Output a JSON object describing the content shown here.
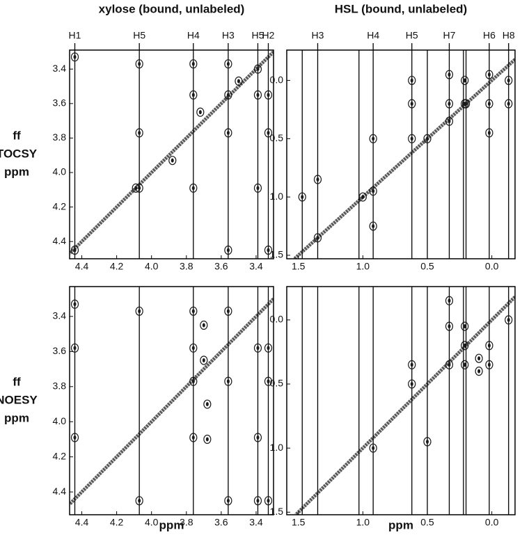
{
  "chart_data": [
    {
      "type": "scatter",
      "title": "xylose (bound, unlabeled)",
      "ylabel": [
        "ff",
        "TOCSY",
        "ppm"
      ],
      "color": "#1a1a1a",
      "diagonal": true,
      "xlim": [
        4.47,
        3.3
      ],
      "ylim": [
        3.29,
        4.5
      ],
      "xticks": [
        4.4,
        4.2,
        {
          "value": 4,
          "label": "4.0"
        },
        3.8,
        3.6,
        3.4
      ],
      "yticks": [
        3.4,
        3.6,
        3.8,
        {
          "value": 4,
          "label": "4.0"
        },
        4.2,
        4.4
      ],
      "markers": {
        "x": [
          4.44,
          4.07,
          3.76,
          3.56,
          3.39,
          3.33
        ],
        "labels": [
          "H1",
          "H5",
          "H4",
          "H3",
          "H5",
          "H2"
        ]
      },
      "x": [
        4.44,
        4.07,
        4.07,
        4.07,
        3.76,
        3.76,
        3.76,
        3.56,
        3.56,
        3.56,
        3.56,
        3.39,
        3.39,
        3.33,
        3.33,
        3.33,
        4.44,
        4.09,
        3.88,
        3.72,
        3.5,
        3.39
      ],
      "y": [
        3.33,
        3.37,
        3.77,
        4.09,
        3.37,
        3.55,
        4.09,
        3.37,
        3.55,
        3.77,
        4.45,
        3.55,
        4.09,
        3.55,
        3.77,
        4.45,
        4.45,
        4.09,
        3.93,
        3.65,
        3.47,
        3.4
      ]
    },
    {
      "type": "scatter",
      "title": "HSL (bound, unlabeled)",
      "color": "#1a1a1a",
      "diagonal": true,
      "xlim": [
        1.59,
        -0.18
      ],
      "ylim": [
        -0.26,
        1.53
      ],
      "xticks": [
        1.5,
        {
          "value": 1,
          "label": "1.0"
        },
        0.5,
        {
          "value": 0,
          "label": "0.0"
        }
      ],
      "yticks": [
        {
          "value": 0,
          "label": "0.0"
        },
        0.5,
        {
          "value": 1,
          "label": "1.0"
        },
        1.5
      ],
      "markers": {
        "x": [
          1.47,
          1.35,
          1.03,
          0.92,
          0.62,
          0.5,
          0.33,
          0.22,
          0.2,
          0.02,
          -0.13
        ],
        "labels": [
          null,
          "H3",
          null,
          "H4",
          "H5",
          null,
          "H7",
          null,
          null,
          "H6",
          "H8"
        ]
      },
      "x": [
        0.62,
        0.62,
        0.62,
        0.92,
        0.92,
        1.35,
        0.33,
        0.33,
        0.33,
        0.21,
        0.21,
        0.02,
        0.02,
        0.02,
        -0.13,
        -0.13,
        1.47,
        0.92,
        1.35,
        1.0,
        0.5,
        0.2
      ],
      "y": [
        0.0,
        0.2,
        0.5,
        0.5,
        1.25,
        0.85,
        -0.05,
        0.2,
        0.35,
        0.0,
        0.2,
        -0.05,
        0.2,
        0.45,
        0.0,
        0.2,
        1.0,
        0.95,
        1.35,
        1.0,
        0.5,
        0.2
      ]
    },
    {
      "type": "scatter",
      "xlabel": "ppm",
      "ylabel": [
        "ff",
        "NOESY",
        "ppm"
      ],
      "color": "#1a1a1a",
      "diagonal": true,
      "xlim": [
        4.47,
        3.3
      ],
      "ylim": [
        3.23,
        4.53
      ],
      "xticks": [
        4.4,
        4.2,
        {
          "value": 4,
          "label": "4.0"
        },
        3.8,
        3.6,
        3.4
      ],
      "yticks": [
        3.4,
        3.6,
        3.8,
        {
          "value": 4,
          "label": "4.0"
        },
        4.2,
        4.4
      ],
      "markers": {
        "x": [
          4.44,
          4.07,
          3.76,
          3.56,
          3.39,
          3.33
        ]
      },
      "x": [
        4.44,
        4.44,
        4.44,
        4.07,
        4.07,
        3.76,
        3.76,
        3.76,
        3.76,
        3.56,
        3.56,
        3.56,
        3.39,
        3.39,
        3.39,
        3.33,
        3.33,
        3.33,
        3.7,
        3.7,
        3.68,
        3.68
      ],
      "y": [
        3.33,
        3.58,
        4.09,
        3.37,
        4.45,
        3.37,
        3.58,
        3.77,
        4.09,
        3.37,
        3.77,
        4.45,
        3.58,
        4.09,
        4.45,
        3.58,
        3.77,
        4.45,
        3.45,
        3.65,
        3.9,
        4.1
      ]
    },
    {
      "type": "scatter",
      "xlabel": "ppm",
      "color": "#1a1a1a",
      "diagonal": true,
      "xlim": [
        1.59,
        -0.18
      ],
      "ylim": [
        -0.26,
        1.52
      ],
      "xticks": [
        1.5,
        {
          "value": 1,
          "label": "1.0"
        },
        0.5,
        {
          "value": 0,
          "label": "0.0"
        }
      ],
      "yticks": [
        {
          "value": 0,
          "label": "0.0"
        },
        0.5,
        {
          "value": 1,
          "label": "1.0"
        },
        1.5
      ],
      "markers": {
        "x": [
          1.47,
          1.35,
          1.03,
          0.92,
          0.62,
          0.5,
          0.33,
          0.22,
          0.2,
          0.02,
          -0.13
        ]
      },
      "x": [
        0.33,
        0.33,
        0.33,
        0.21,
        0.21,
        0.21,
        0.02,
        0.02,
        -0.13,
        0.62,
        0.62,
        0.92,
        0.5,
        0.1,
        0.1
      ],
      "y": [
        -0.15,
        0.05,
        0.35,
        0.05,
        0.2,
        0.35,
        0.2,
        0.35,
        0.0,
        0.35,
        0.5,
        1.0,
        0.95,
        0.3,
        0.4
      ]
    }
  ]
}
